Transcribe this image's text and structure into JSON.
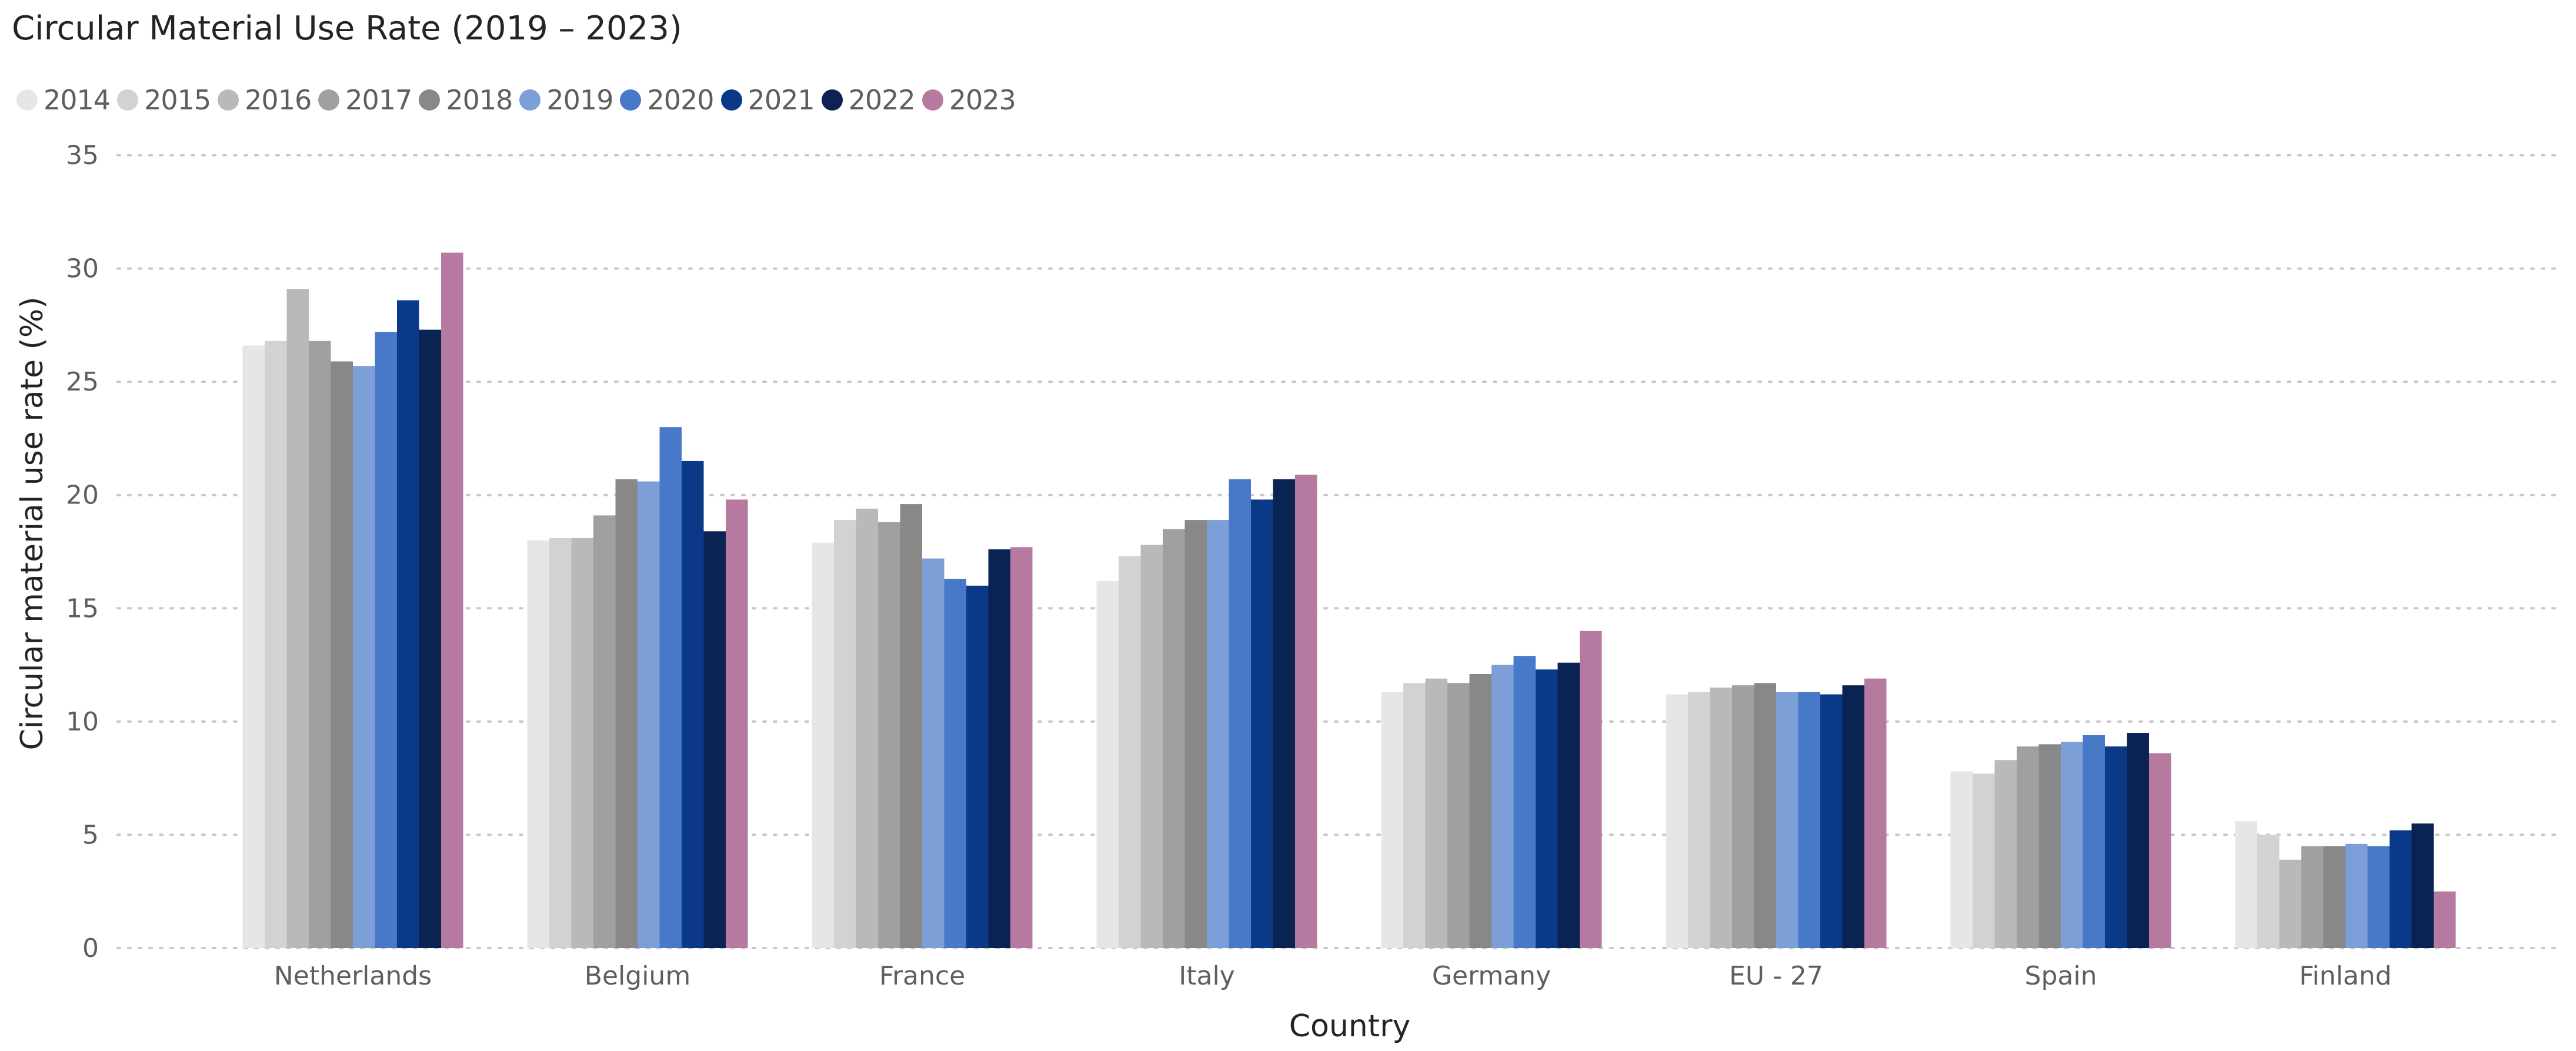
{
  "chart_data": {
    "type": "bar",
    "title": "Circular Material Use Rate (2019 – 2023)",
    "xlabel": "Country",
    "ylabel": "Circular material use rate (%)",
    "ylim": [
      0,
      35
    ],
    "yticks": [
      0,
      5,
      10,
      15,
      20,
      25,
      30,
      35
    ],
    "grid": true,
    "legend_position": "top-left",
    "categories": [
      "Netherlands",
      "Belgium",
      "France",
      "Italy",
      "Germany",
      "EU - 27",
      "Spain",
      "Finland"
    ],
    "series": [
      {
        "name": "2014",
        "color": "#e6e6e6",
        "values": [
          26.6,
          18.0,
          17.9,
          16.2,
          11.3,
          11.2,
          7.8,
          5.6
        ]
      },
      {
        "name": "2015",
        "color": "#d2d2d2",
        "values": [
          26.8,
          18.1,
          18.9,
          17.3,
          11.7,
          11.3,
          7.7,
          5.0
        ]
      },
      {
        "name": "2016",
        "color": "#b9b9b9",
        "values": [
          29.1,
          18.1,
          19.4,
          17.8,
          11.9,
          11.5,
          8.3,
          3.9
        ]
      },
      {
        "name": "2017",
        "color": "#a0a0a0",
        "values": [
          26.8,
          19.1,
          18.8,
          18.5,
          11.7,
          11.6,
          8.9,
          4.5
        ]
      },
      {
        "name": "2018",
        "color": "#888888",
        "values": [
          25.9,
          20.7,
          19.6,
          18.9,
          12.1,
          11.7,
          9.0,
          4.5
        ]
      },
      {
        "name": "2019",
        "color": "#7b9fd6",
        "values": [
          25.7,
          20.6,
          17.2,
          18.9,
          12.5,
          11.3,
          9.1,
          4.6
        ]
      },
      {
        "name": "2020",
        "color": "#4878c8",
        "values": [
          27.2,
          23.0,
          16.3,
          20.7,
          12.9,
          11.3,
          9.4,
          4.5
        ]
      },
      {
        "name": "2021",
        "color": "#0a3a87",
        "values": [
          28.6,
          21.5,
          16.0,
          19.8,
          12.3,
          11.2,
          8.9,
          5.2
        ]
      },
      {
        "name": "2022",
        "color": "#0b2352",
        "values": [
          27.3,
          18.4,
          17.6,
          20.7,
          12.6,
          11.6,
          9.5,
          5.5
        ]
      },
      {
        "name": "2023",
        "color": "#b67aa0",
        "values": [
          30.7,
          19.8,
          17.7,
          20.9,
          14.0,
          11.9,
          8.6,
          2.5
        ]
      }
    ]
  }
}
